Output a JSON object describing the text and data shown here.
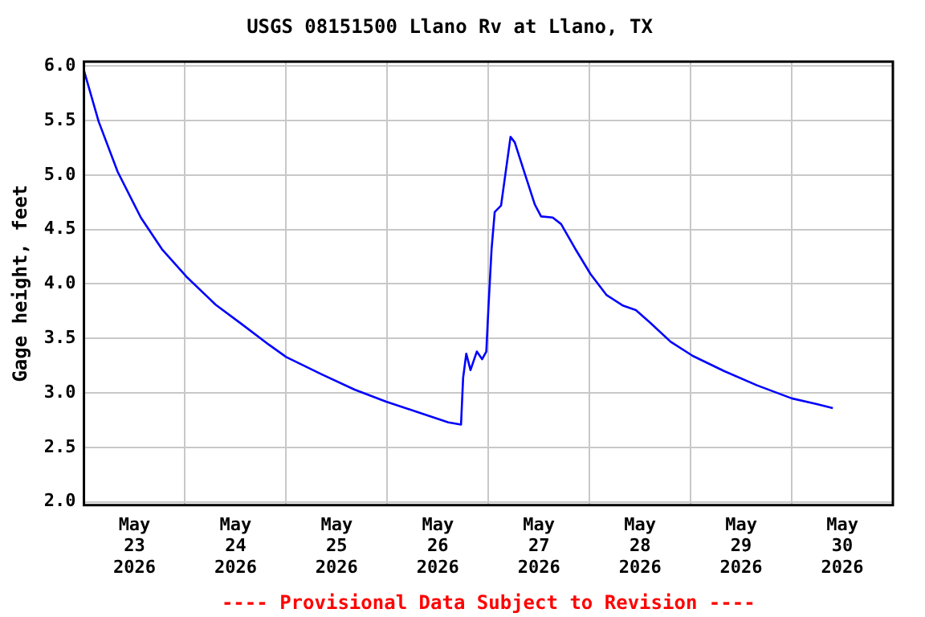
{
  "chart_data": {
    "type": "line",
    "title": "USGS 08151500 Llano Rv at Llano, TX",
    "ylabel": "Gage height, feet",
    "annotations": [
      "---- Provisional Data Subject to Revision ----"
    ],
    "x": [
      "2026-05-23T00:00",
      "2026-05-23T03:30",
      "2026-05-23T08:00",
      "2026-05-23T13:30",
      "2026-05-23T18:30",
      "2026-05-24T00:15",
      "2026-05-24T07:15",
      "2026-05-24T13:30",
      "2026-05-24T20:00",
      "2026-05-25T00:00",
      "2026-05-25T08:30",
      "2026-05-25T16:15",
      "2026-05-25T23:45",
      "2026-05-26T07:30",
      "2026-05-26T14:30",
      "2026-05-26T17:30",
      "2026-05-26T18:00",
      "2026-05-26T18:45",
      "2026-05-26T19:45",
      "2026-05-26T21:15",
      "2026-05-26T22:30",
      "2026-05-26T23:30",
      "2026-05-27T00:00",
      "2026-05-27T00:45",
      "2026-05-27T01:30",
      "2026-05-27T03:00",
      "2026-05-27T04:00",
      "2026-05-27T05:15",
      "2026-05-27T06:15",
      "2026-05-27T08:30",
      "2026-05-27T11:00",
      "2026-05-27T12:30",
      "2026-05-27T15:15",
      "2026-05-27T17:15",
      "2026-05-27T20:30",
      "2026-05-28T00:15",
      "2026-05-28T04:00",
      "2026-05-28T08:00",
      "2026-05-28T11:00",
      "2026-05-28T14:15",
      "2026-05-28T19:15",
      "2026-05-29T00:30",
      "2026-05-29T08:00",
      "2026-05-29T15:45",
      "2026-05-30T00:00",
      "2026-05-30T05:45",
      "2026-05-30T09:45"
    ],
    "series": [
      {
        "color": "#0000ff",
        "values": [
          5.96,
          5.49,
          5.03,
          4.61,
          4.32,
          4.07,
          3.81,
          3.63,
          3.44,
          3.33,
          3.17,
          3.03,
          2.92,
          2.82,
          2.73,
          2.71,
          3.14,
          3.36,
          3.21,
          3.38,
          3.31,
          3.38,
          3.78,
          4.32,
          4.66,
          4.72,
          5.0,
          5.35,
          5.3,
          5.03,
          4.73,
          4.62,
          4.61,
          4.55,
          4.33,
          4.09,
          3.9,
          3.8,
          3.76,
          3.65,
          3.47,
          3.34,
          3.2,
          3.07,
          2.95,
          2.9,
          2.86
        ]
      }
    ],
    "xlim": [
      "2026-05-23T00:00",
      "2026-05-31T00:00"
    ],
    "xticks": [
      {
        "value": "2026-05-23T12:00",
        "label": "May 23 2026"
      },
      {
        "value": "2026-05-24T00:00",
        "label": null
      },
      {
        "value": "2026-05-24T12:00",
        "label": "May 24 2026"
      },
      {
        "value": "2026-05-25T00:00",
        "label": null
      },
      {
        "value": "2026-05-25T12:00",
        "label": "May 25 2026"
      },
      {
        "value": "2026-05-26T00:00",
        "label": null
      },
      {
        "value": "2026-05-26T12:00",
        "label": "May 26 2026"
      },
      {
        "value": "2026-05-27T00:00",
        "label": null
      },
      {
        "value": "2026-05-27T12:00",
        "label": "May 27 2026"
      },
      {
        "value": "2026-05-28T00:00",
        "label": null
      },
      {
        "value": "2026-05-28T12:00",
        "label": "May 28 2026"
      },
      {
        "value": "2026-05-29T00:00",
        "label": null
      },
      {
        "value": "2026-05-29T12:00",
        "label": "May 29 2026"
      },
      {
        "value": "2026-05-30T00:00",
        "label": null
      },
      {
        "value": "2026-05-30T12:00",
        "label": "May 30 2026"
      }
    ],
    "ylim": [
      1.97,
      6.04
    ],
    "yticks": [
      {
        "value": 2,
        "label": "2.0"
      },
      {
        "value": 2.5,
        "label": "2.5"
      },
      {
        "value": 3,
        "label": "3.0"
      },
      {
        "value": 3.5,
        "label": "3.5"
      },
      {
        "value": 4,
        "label": "4.0"
      },
      {
        "value": 4.5,
        "label": "4.5"
      },
      {
        "value": 5,
        "label": "5.0"
      },
      {
        "value": 5.5,
        "label": "5.5"
      },
      {
        "value": 6,
        "label": "6.0"
      }
    ],
    "grid": true,
    "legend": false,
    "marker": "none",
    "line_style": "solid"
  }
}
